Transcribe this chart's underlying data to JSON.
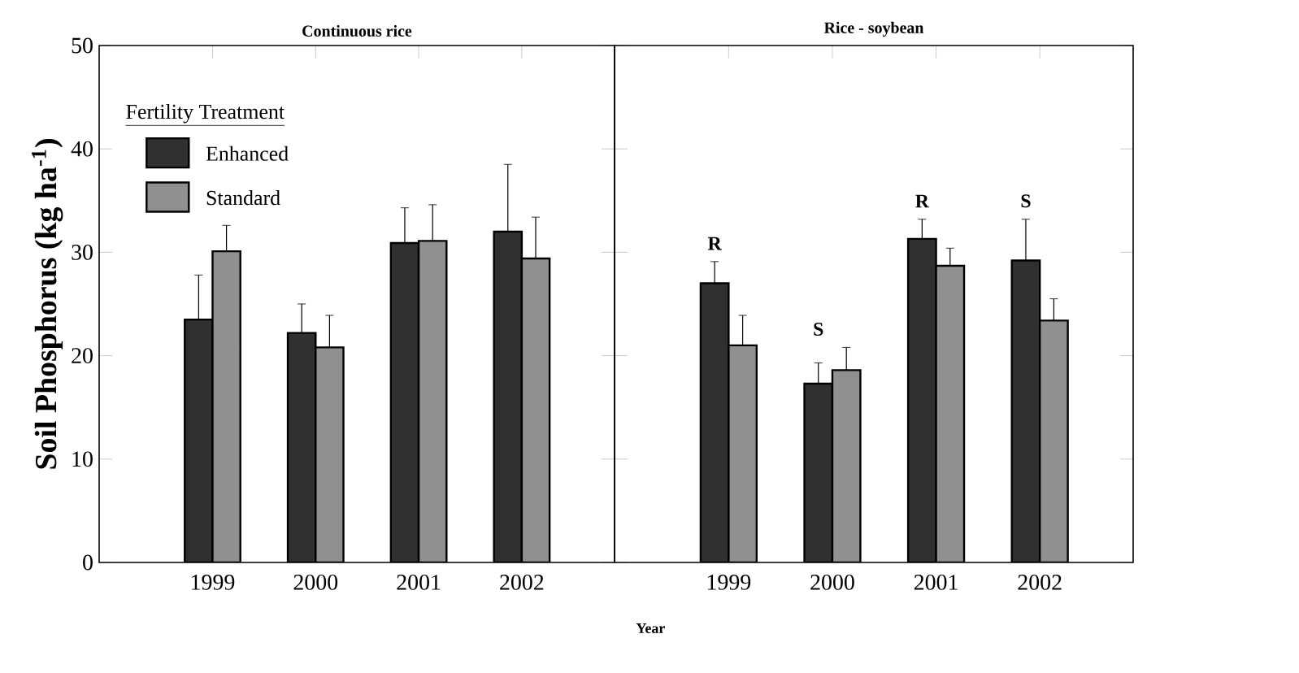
{
  "chart_data": [
    {
      "type": "bar",
      "title": "Continuous rice",
      "xlabel": "Year",
      "ylabel": "Soil Phosphorus (kg ha$^{-1}$)",
      "legend_title": "Fertility Treatment",
      "legend": "top left",
      "categories": [
        "1999",
        "2000",
        "2001",
        "2002"
      ],
      "ylim": [
        0,
        50
      ],
      "yticks": [
        0,
        10,
        20,
        30,
        40,
        50
      ],
      "series": [
        {
          "name": "Enhanced",
          "color": "#303030",
          "values": [
            23.5,
            22.2,
            30.9,
            32.0
          ],
          "errors": [
            [
              23.5,
              27.8
            ],
            [
              22.2,
              25.0
            ],
            [
              30.9,
              34.3
            ],
            [
              32.0,
              38.5
            ]
          ]
        },
        {
          "name": "Standard",
          "color": "#909090",
          "values": [
            30.1,
            20.8,
            31.1,
            29.4
          ],
          "errors": [
            [
              30.1,
              32.6
            ],
            [
              20.8,
              23.9
            ],
            [
              31.1,
              34.6
            ],
            [
              29.4,
              33.4
            ]
          ]
        }
      ]
    },
    {
      "type": "bar",
      "title": "Rice - soybean",
      "tick_labels": "x",
      "categories": [
        "1999",
        "2000",
        "2001",
        "2002"
      ],
      "ylim": [
        0,
        50
      ],
      "yticks": [
        0,
        10,
        20,
        30,
        40,
        50
      ],
      "series": [
        {
          "color": "#303030",
          "values": [
            27.0,
            17.3,
            31.3,
            29.2
          ],
          "errors": [
            [
              27.0,
              29.1
            ],
            [
              17.3,
              19.3
            ],
            [
              31.3,
              33.2
            ],
            [
              29.2,
              33.2
            ]
          ]
        },
        {
          "color": "#909090",
          "values": [
            21.0,
            18.6,
            28.7,
            23.4
          ],
          "errors": [
            [
              21.0,
              23.9
            ],
            [
              18.6,
              20.8
            ],
            [
              28.7,
              30.4
            ],
            [
              23.4,
              25.5
            ]
          ]
        }
      ],
      "annotations": [
        "R",
        "S",
        "R",
        "S"
      ]
    }
  ]
}
